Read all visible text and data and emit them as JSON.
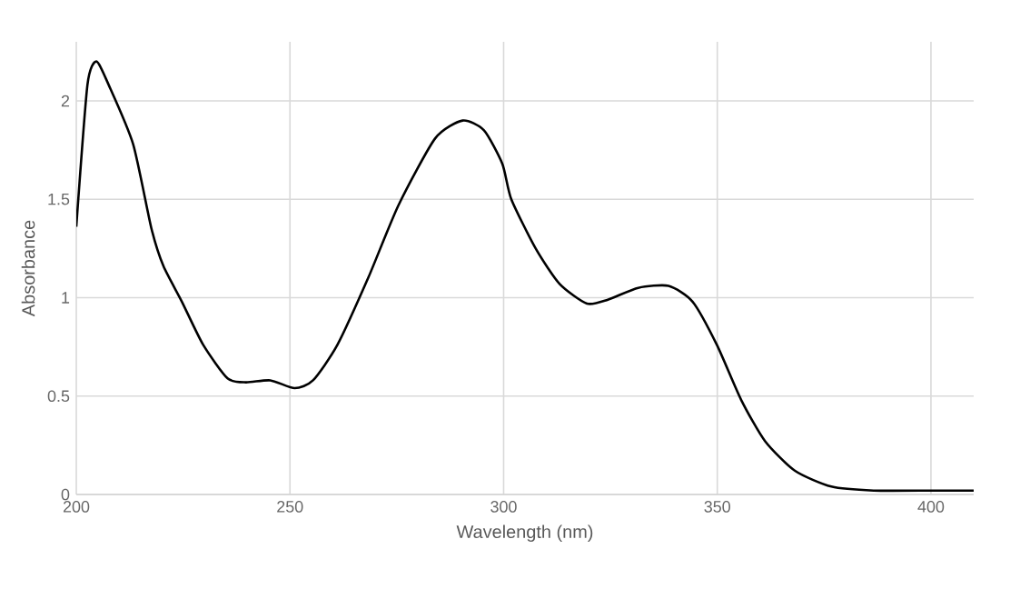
{
  "chart_data": {
    "type": "line",
    "xlabel": "Wavelength (nm)",
    "ylabel": "Absorbance",
    "xlim": [
      200,
      410
    ],
    "ylim": [
      0,
      2.3
    ],
    "xticks": [
      200,
      250,
      300,
      350,
      400
    ],
    "yticks": [
      0,
      0.5,
      1,
      1.5,
      2
    ],
    "grid": true,
    "marker": "none",
    "line_style": "solid",
    "series": [
      {
        "color": "#000000",
        "x": [
          200,
          202.6,
          204.7,
          207.6,
          213.3,
          217.6,
          220.4,
          224.7,
          229.7,
          235.4,
          239.7,
          245.4,
          251.1,
          255.4,
          261.1,
          268.3,
          275.4,
          284,
          290.4,
          295.4,
          299.7,
          301.8,
          307.5,
          313.1,
          319.5,
          324.4,
          331.5,
          338.6,
          344.2,
          349.9,
          355.6,
          361.2,
          368.2,
          376.7,
          386.6,
          400.7,
          410
        ],
        "values": [
          1.36,
          2.08,
          2.2,
          2.08,
          1.78,
          1.35,
          1.16,
          0.98,
          0.76,
          0.59,
          0.57,
          0.58,
          0.54,
          0.58,
          0.76,
          1.1,
          1.47,
          1.81,
          1.9,
          1.85,
          1.68,
          1.5,
          1.25,
          1.07,
          0.97,
          0.99,
          1.05,
          1.06,
          0.98,
          0.76,
          0.48,
          0.27,
          0.12,
          0.04,
          0.02,
          0.02,
          0.02
        ]
      }
    ]
  }
}
